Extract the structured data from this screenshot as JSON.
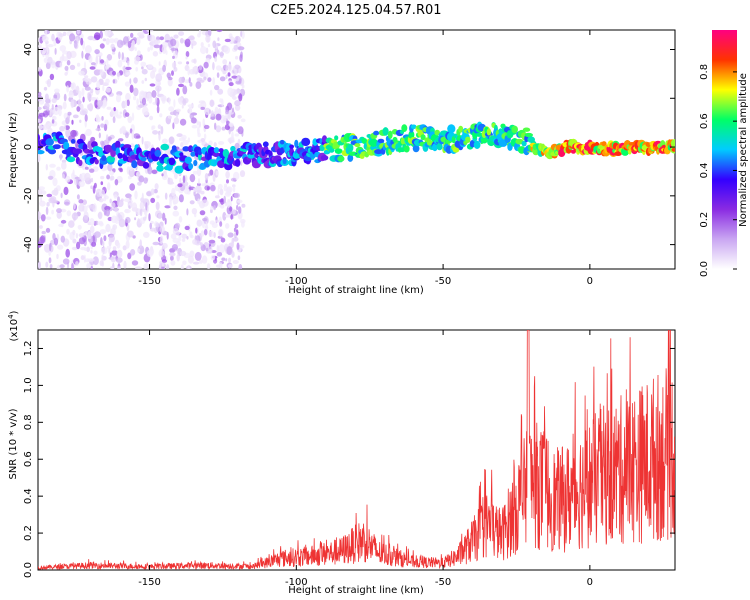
{
  "figure": {
    "title": "C2E5.2024.125.04.57.R01"
  },
  "chart_data": [
    {
      "type": "heatmap",
      "xlabel": "Height of straight line (km)",
      "ylabel": "Frequency (Hz)",
      "xlim": [
        -188,
        29
      ],
      "ylim": [
        -50,
        48
      ],
      "xticks": [
        -150,
        -100,
        -50,
        0
      ],
      "yticks": [
        -40,
        -20,
        0,
        20,
        40
      ],
      "colorbar": {
        "label": "Normalized spectral amplitude",
        "ticks": [
          "0.0",
          "0.2",
          "0.4",
          "0.6",
          "0.8"
        ],
        "range": [
          0.0,
          0.97
        ],
        "colormap": [
          "#ffffff",
          "#c9a6f2",
          "#8a2be2",
          "#3300ff",
          "#00ccff",
          "#00ff66",
          "#ffff00",
          "#ff3300",
          "#ff0080"
        ]
      },
      "ridge": [
        {
          "x": -185,
          "y": 2
        },
        {
          "x": -175,
          "y": -2
        },
        {
          "x": -165,
          "y": -3
        },
        {
          "x": -150,
          "y": -4
        },
        {
          "x": -140,
          "y": -5
        },
        {
          "x": -130,
          "y": -4
        },
        {
          "x": -120,
          "y": -4
        },
        {
          "x": -110,
          "y": -3
        },
        {
          "x": -100,
          "y": -2
        },
        {
          "x": -90,
          "y": -1
        },
        {
          "x": -80,
          "y": 0
        },
        {
          "x": -70,
          "y": 2
        },
        {
          "x": -60,
          "y": 4
        },
        {
          "x": -50,
          "y": 3
        },
        {
          "x": -40,
          "y": 4
        },
        {
          "x": -30,
          "y": 5
        },
        {
          "x": -22,
          "y": 3
        },
        {
          "x": -15,
          "y": -3
        },
        {
          "x": -8,
          "y": 0
        },
        {
          "x": 0,
          "y": 0
        },
        {
          "x": 10,
          "y": -1
        },
        {
          "x": 20,
          "y": 0
        },
        {
          "x": 28,
          "y": 0
        }
      ],
      "noise_region_x": [
        -188,
        -118
      ]
    },
    {
      "type": "line",
      "xlabel": "Height of straight line (km)",
      "ylabel": "SNR (10 * v/v)",
      "yscale_label": "(x10",
      "yscale_exp": "4",
      "yscale_close": ")",
      "xlim": [
        -188,
        29
      ],
      "ylim": [
        0,
        1.3
      ],
      "xticks": [
        -150,
        -100,
        -50,
        0
      ],
      "yticks": [
        "0.0",
        "0.2",
        "0.4",
        "0.6",
        "0.8",
        "1.0",
        "1.2"
      ],
      "color": "#ee3333",
      "envelope": [
        {
          "x": -188,
          "y": 0.02
        },
        {
          "x": -170,
          "y": 0.04
        },
        {
          "x": -150,
          "y": 0.03
        },
        {
          "x": -130,
          "y": 0.04
        },
        {
          "x": -115,
          "y": 0.03
        },
        {
          "x": -105,
          "y": 0.1
        },
        {
          "x": -95,
          "y": 0.12
        },
        {
          "x": -85,
          "y": 0.16
        },
        {
          "x": -77,
          "y": 0.26
        },
        {
          "x": -72,
          "y": 0.15
        },
        {
          "x": -60,
          "y": 0.07
        },
        {
          "x": -50,
          "y": 0.06
        },
        {
          "x": -45,
          "y": 0.12
        },
        {
          "x": -40,
          "y": 0.25
        },
        {
          "x": -35,
          "y": 0.4
        },
        {
          "x": -30,
          "y": 0.3
        },
        {
          "x": -25,
          "y": 0.55
        },
        {
          "x": -20,
          "y": 0.75
        },
        {
          "x": -15,
          "y": 0.7
        },
        {
          "x": -12,
          "y": 0.6
        },
        {
          "x": -8,
          "y": 0.62
        },
        {
          "x": -5,
          "y": 0.68
        },
        {
          "x": 0,
          "y": 0.75
        },
        {
          "x": 5,
          "y": 0.82
        },
        {
          "x": 10,
          "y": 0.86
        },
        {
          "x": 15,
          "y": 0.9
        },
        {
          "x": 20,
          "y": 0.95
        },
        {
          "x": 25,
          "y": 1.0
        },
        {
          "x": 29,
          "y": 1.03
        }
      ],
      "peak": {
        "x": -21,
        "y": 1.3
      }
    }
  ]
}
